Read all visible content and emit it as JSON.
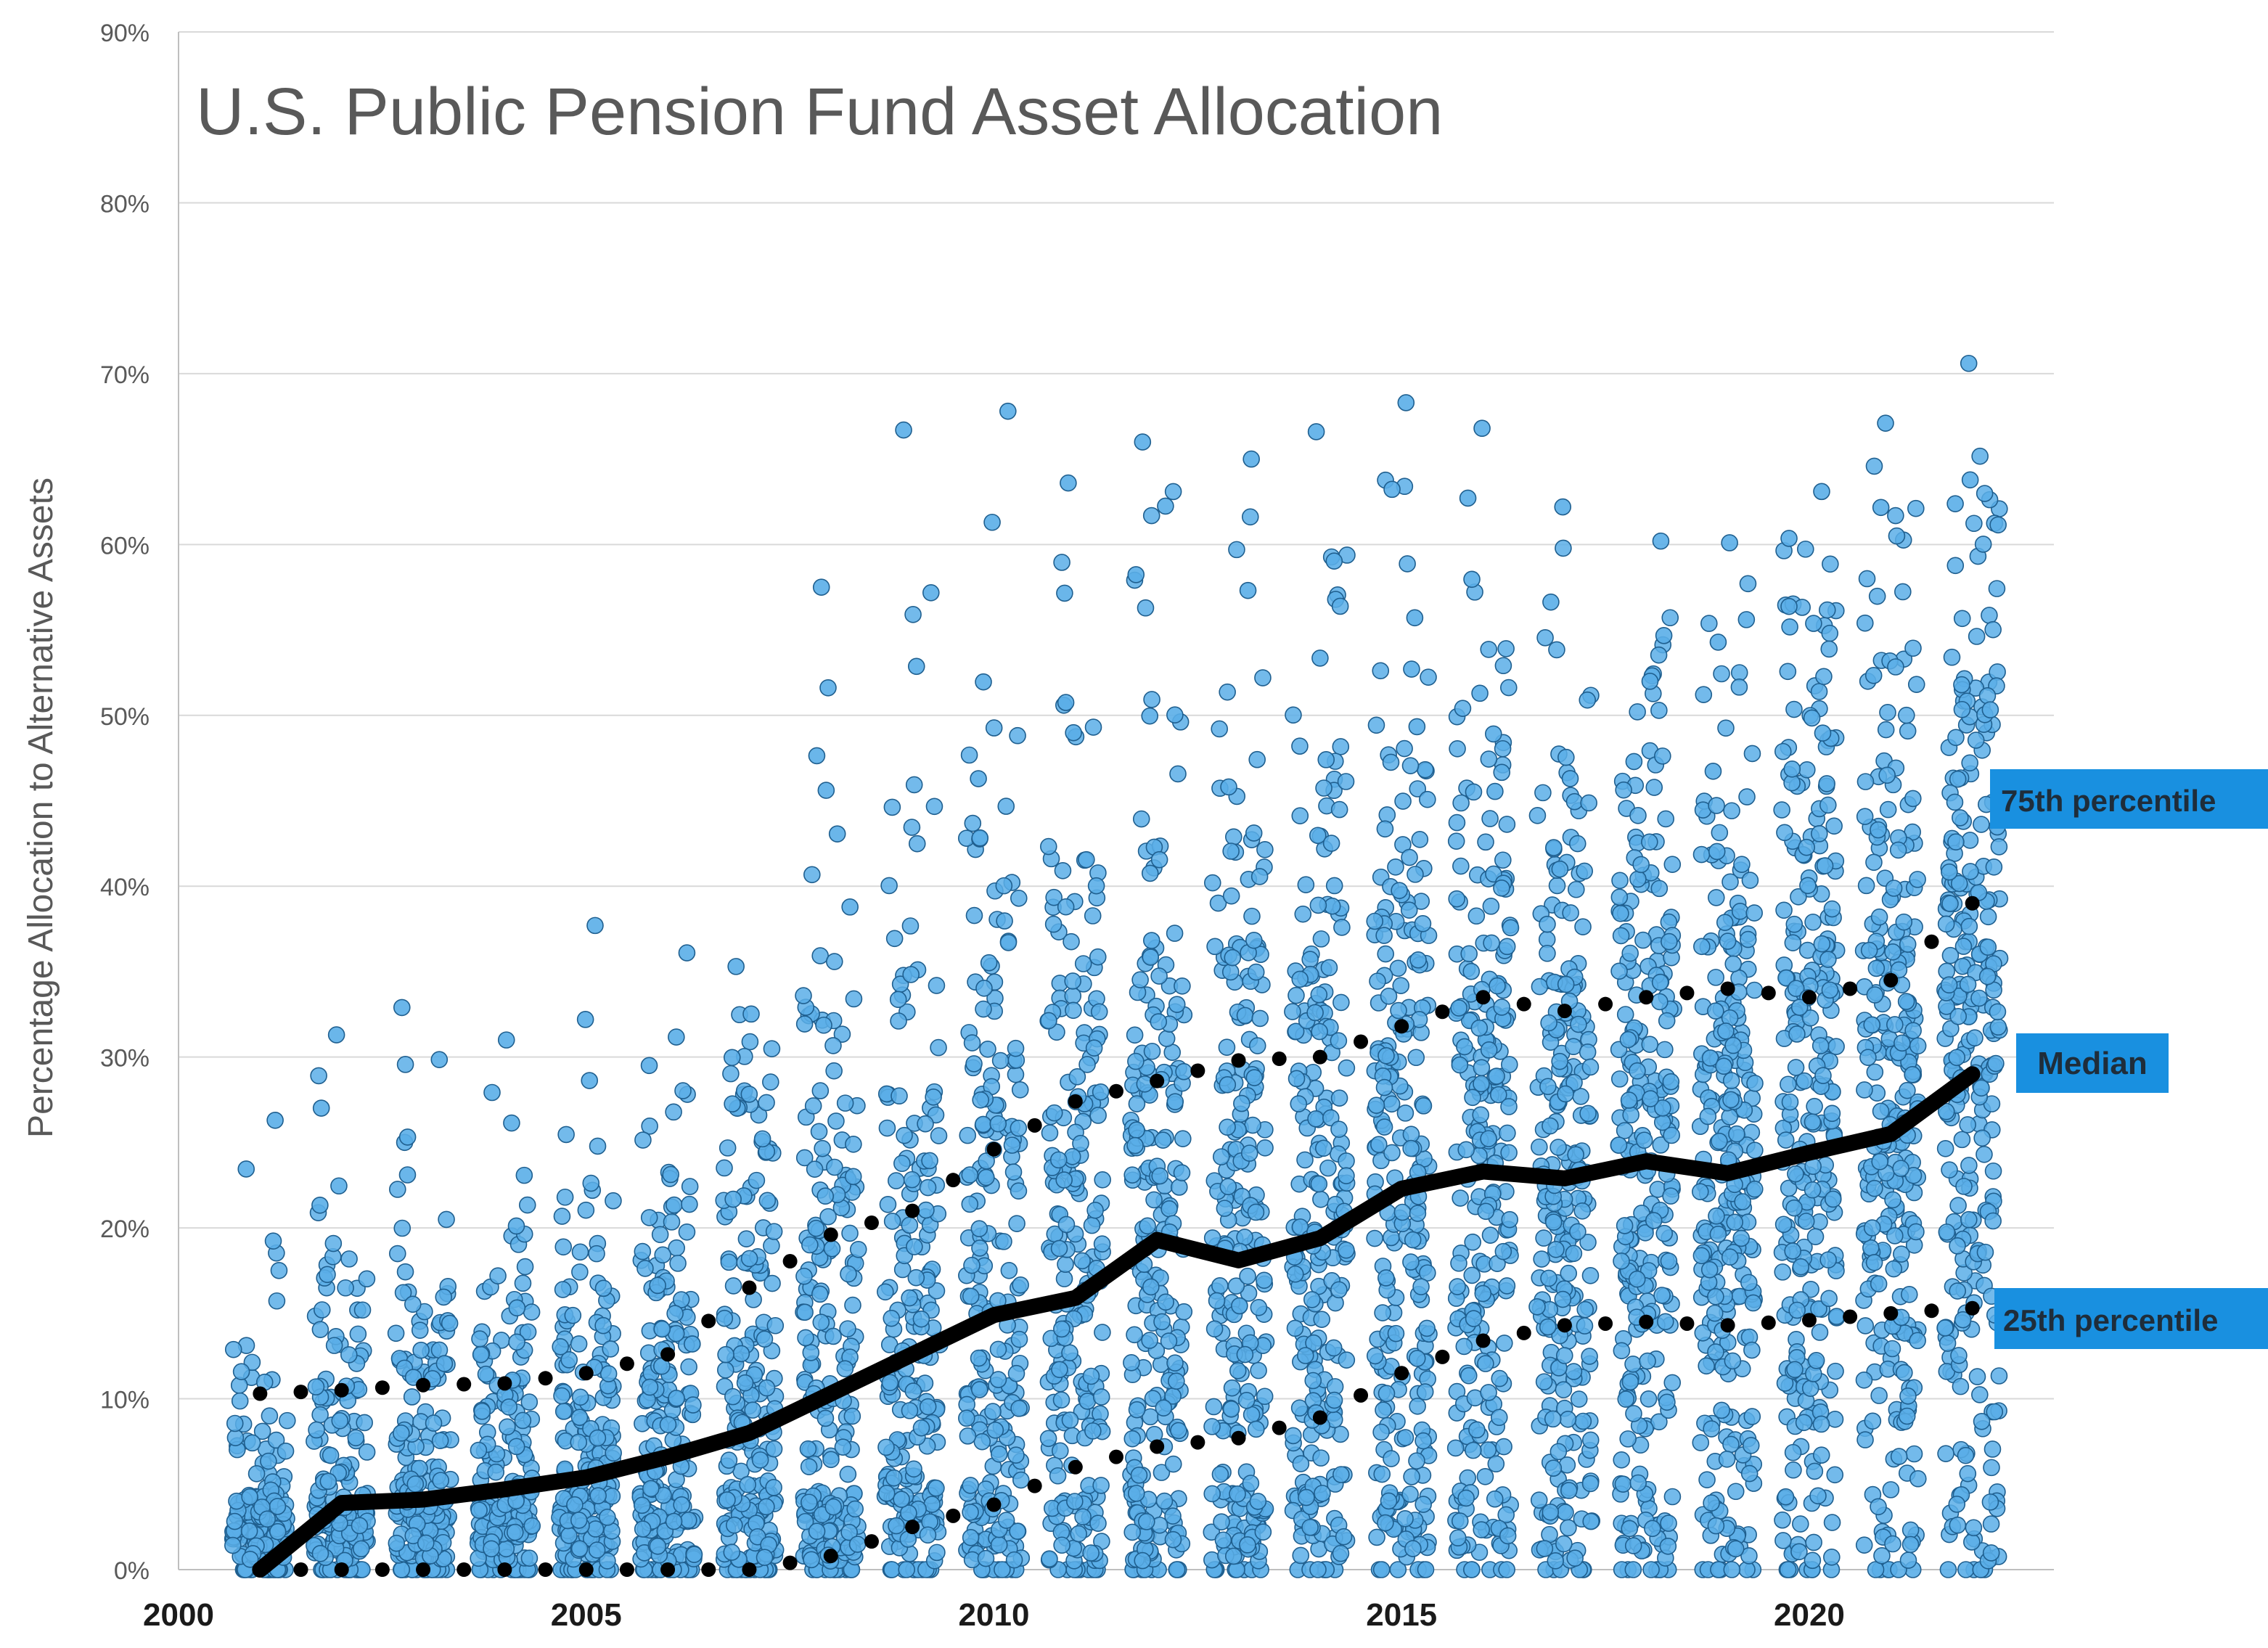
{
  "chart_data": {
    "type": "scatter",
    "title": "U.S. Public Pension Fund Asset Allocation",
    "xlabel": "",
    "ylabel": "Percentage Allocation to Alternative Assets",
    "xlim": [
      2000,
      2023
    ],
    "ylim": [
      0,
      90
    ],
    "x_ticks": [
      2000,
      2005,
      2010,
      2015,
      2020
    ],
    "y_ticks": [
      0,
      10,
      20,
      30,
      40,
      50,
      60,
      70,
      80,
      90
    ],
    "y_tick_labels": [
      "0%",
      "10%",
      "20%",
      "30%",
      "40%",
      "50%",
      "60%",
      "70%",
      "80%",
      "90%"
    ],
    "grid": "horizontal",
    "colors": {
      "points_fill": "#5aaee8",
      "points_stroke": "#1f5f8f",
      "lines": "#000000",
      "label_box": "#1990e0",
      "title": "#595959"
    },
    "years": [
      2001,
      2002,
      2003,
      2004,
      2005,
      2006,
      2007,
      2008,
      2009,
      2010,
      2011,
      2012,
      2013,
      2014,
      2015,
      2016,
      2017,
      2018,
      2019,
      2020,
      2021,
      2022
    ],
    "series": [
      {
        "name": "Median",
        "style": "solid",
        "values": [
          0,
          3.9,
          4.1,
          4.7,
          5.4,
          6.6,
          8,
          10.3,
          12.6,
          14.9,
          15.9,
          19.3,
          18.1,
          19.4,
          22.3,
          23.3,
          22.9,
          23.9,
          23.2,
          24.4,
          25.5,
          29
        ]
      },
      {
        "name": "75th percentile",
        "style": "dotted",
        "values": [
          10.3,
          10.5,
          10.8,
          10.9,
          11.5,
          12.6,
          16.5,
          19.6,
          21,
          24.6,
          27.4,
          28.6,
          29.8,
          30,
          31.8,
          33.5,
          32.7,
          33.5,
          34,
          33.5,
          34.5,
          39
        ]
      },
      {
        "name": "25th percentile",
        "style": "dotted",
        "values": [
          0,
          0,
          0,
          0,
          0,
          0,
          0,
          0.8,
          2.5,
          3.8,
          6,
          7.2,
          7.7,
          8.9,
          11.5,
          13.4,
          14.3,
          14.5,
          14.3,
          14.6,
          15,
          15.3
        ]
      }
    ],
    "scatter_summary": [
      {
        "year": 2001,
        "max": 26.3,
        "zero_count": 20
      },
      {
        "year": 2002,
        "max": 31.3,
        "zero_count": 18
      },
      {
        "year": 2003,
        "max": 32.9,
        "zero_count": 17
      },
      {
        "year": 2004,
        "max": 31,
        "zero_count": 16
      },
      {
        "year": 2005,
        "max": 37.7,
        "zero_count": 14
      },
      {
        "year": 2006,
        "max": 36.1,
        "zero_count": 13
      },
      {
        "year": 2007,
        "max": 35.3,
        "zero_count": 14
      },
      {
        "year": 2008,
        "max": 57.5,
        "zero_count": 12
      },
      {
        "year": 2009,
        "max": 66.7,
        "zero_count": 12
      },
      {
        "year": 2010,
        "max": 67.8,
        "zero_count": 10
      },
      {
        "year": 2011,
        "max": 63.6,
        "zero_count": 10
      },
      {
        "year": 2012,
        "max": 66,
        "zero_count": 9
      },
      {
        "year": 2013,
        "max": 65,
        "zero_count": 8
      },
      {
        "year": 2014,
        "max": 66.6,
        "zero_count": 7
      },
      {
        "year": 2015,
        "max": 68.3,
        "zero_count": 6
      },
      {
        "year": 2016,
        "max": 66.8,
        "zero_count": 6
      },
      {
        "year": 2017,
        "max": 62.2,
        "zero_count": 6
      },
      {
        "year": 2018,
        "max": 60.2,
        "zero_count": 8
      },
      {
        "year": 2019,
        "max": 60.1,
        "zero_count": 8
      },
      {
        "year": 2020,
        "max": 63.1,
        "zero_count": 7
      },
      {
        "year": 2021,
        "max": 67.1,
        "zero_count": 6
      },
      {
        "year": 2022,
        "max": 70.6,
        "zero_count": 6
      }
    ],
    "labels": {
      "p75": "75th percentile",
      "median": "Median",
      "p25": "25th percentile"
    }
  }
}
